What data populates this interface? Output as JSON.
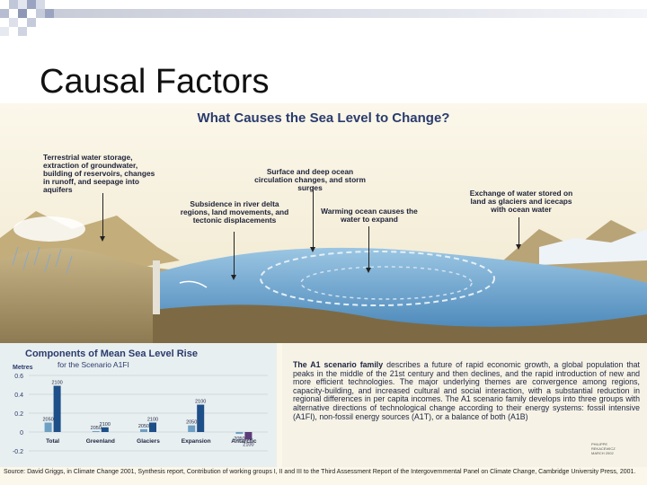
{
  "slide": {
    "title": "Causal Factors"
  },
  "infographic": {
    "title": "What Causes the Sea Level to Change?",
    "labels": {
      "terrestrial": "Terrestrial water storage, extraction of groundwater, building of reservoirs, changes in runoff, and seepage into aquifers",
      "circulation": "Surface and deep ocean circulation changes, and storm surges",
      "subsidence": "Subsidence in river delta regions, land movements, and tectonic displacements",
      "warming": "Warming ocean causes the water to expand",
      "exchange": "Exchange of water stored on land as glaciers and icecaps with ocean water"
    },
    "colors": {
      "ocean": "#6fa9d1",
      "sky": "#f4efdc",
      "land": "#c9b78a",
      "chart_bar": "#1d4f88",
      "text": "#2a3b6e"
    }
  },
  "chart_data": {
    "type": "bar",
    "title": "Components of Mean Sea Level Rise",
    "subtitle": "for the Scenario A1FI",
    "ylabel": "Metres",
    "ylim": [
      -0.2,
      0.6
    ],
    "yticks": [
      "0.6",
      "0.4",
      "0.2",
      "0",
      "-0.2"
    ],
    "categories": [
      "Total",
      "Greenland",
      "Glaciers",
      "Expansion",
      "Antarctic"
    ],
    "series": [
      {
        "name": "2050",
        "values": [
          0.1,
          0.01,
          0.03,
          0.07,
          -0.02
        ]
      },
      {
        "name": "2100",
        "values": [
          0.49,
          0.05,
          0.1,
          0.29,
          -0.08
        ]
      }
    ],
    "bar_labels": {
      "2050": [
        "2050",
        "2050",
        "2050",
        "2050",
        "2050"
      ],
      "2100": [
        "2100",
        "2100",
        "2100",
        "2100",
        "2100"
      ]
    }
  },
  "scenario_text": {
    "lead": "The A1 scenario family",
    "body": " describes a future of rapid economic growth, a global population that peaks in the middle of the 21st century and then declines, and the rapid introduction of new and more efficient technologies. The major underlying themes are convergence among regions, capacity-building, and increased cultural and social interaction, with a substantial reduction in regional differences in per capita incomes. The A1 scenario family develops into three groups with alternative directions of technological change according to their energy systems: fossil intensive (A1FI), non-fossil energy sources (A1T), or a balance of both (A1B)"
  },
  "credit": "PHILIPPE REKACEWICZ MARCH 2002",
  "source": "Source: David Griggs, in Climate Change 2001, Synthesis report, Contribution of working groups I, II and III to the Third Assessment Report of the Intergovernmental Panel on Climate Change, Cambridge University Press, 2001.",
  "logo_text": "UNEP"
}
